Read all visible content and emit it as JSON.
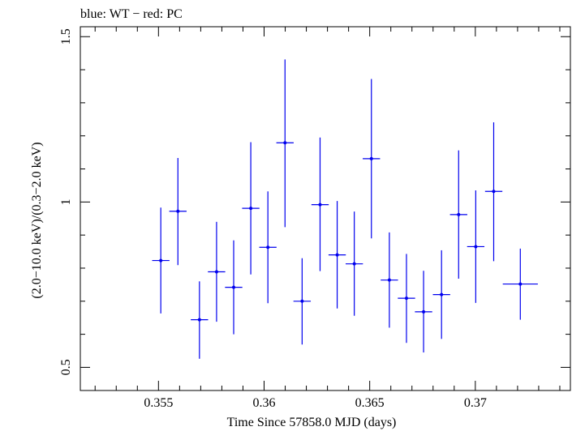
{
  "chart_data": {
    "type": "scatter",
    "title": "blue: WT − red: PC",
    "xlabel": "Time Since 57858.0 MJD (days)",
    "ylabel": "(2.0−10.0 keV)/(0.3−2.0 keV)",
    "xlim": [
      0.3513,
      0.3745
    ],
    "ylim": [
      0.43,
      1.53
    ],
    "x_ticks": [
      {
        "value": 0.355,
        "label": "0.355"
      },
      {
        "value": 0.36,
        "label": "0.36"
      },
      {
        "value": 0.365,
        "label": "0.365"
      },
      {
        "value": 0.37,
        "label": "0.37"
      }
    ],
    "y_ticks": [
      {
        "value": 0.5,
        "label": "0.5"
      },
      {
        "value": 1.0,
        "label": "1"
      },
      {
        "value": 1.5,
        "label": "1.5"
      }
    ],
    "grid": false,
    "series": [
      {
        "name": "WT",
        "color": "#0000ee",
        "points": [
          {
            "x": 0.35511,
            "xerr": 0.00041,
            "y": 0.823,
            "ylo": 0.663,
            "yhi": 0.983
          },
          {
            "x": 0.35592,
            "xerr": 0.00041,
            "y": 0.972,
            "ylo": 0.809,
            "yhi": 1.133
          },
          {
            "x": 0.35694,
            "xerr": 0.00041,
            "y": 0.644,
            "ylo": 0.526,
            "yhi": 0.76
          },
          {
            "x": 0.35775,
            "xerr": 0.00041,
            "y": 0.789,
            "ylo": 0.638,
            "yhi": 0.94
          },
          {
            "x": 0.35856,
            "xerr": 0.00041,
            "y": 0.742,
            "ylo": 0.6,
            "yhi": 0.884
          },
          {
            "x": 0.35937,
            "xerr": 0.00041,
            "y": 0.981,
            "ylo": 0.781,
            "yhi": 1.181
          },
          {
            "x": 0.36018,
            "xerr": 0.00041,
            "y": 0.863,
            "ylo": 0.694,
            "yhi": 1.032
          },
          {
            "x": 0.36099,
            "xerr": 0.00041,
            "y": 1.179,
            "ylo": 0.924,
            "yhi": 1.431
          },
          {
            "x": 0.3618,
            "xerr": 0.00041,
            "y": 0.7,
            "ylo": 0.569,
            "yhi": 0.83
          },
          {
            "x": 0.36265,
            "xerr": 0.00041,
            "y": 0.992,
            "ylo": 0.791,
            "yhi": 1.195
          },
          {
            "x": 0.36346,
            "xerr": 0.00041,
            "y": 0.84,
            "ylo": 0.678,
            "yhi": 1.003
          },
          {
            "x": 0.36427,
            "xerr": 0.00041,
            "y": 0.813,
            "ylo": 0.656,
            "yhi": 0.971
          },
          {
            "x": 0.36508,
            "xerr": 0.00041,
            "y": 1.131,
            "ylo": 0.89,
            "yhi": 1.372
          },
          {
            "x": 0.36593,
            "xerr": 0.00041,
            "y": 0.764,
            "ylo": 0.62,
            "yhi": 0.908
          },
          {
            "x": 0.36674,
            "xerr": 0.00041,
            "y": 0.709,
            "ylo": 0.574,
            "yhi": 0.843
          },
          {
            "x": 0.36755,
            "xerr": 0.00041,
            "y": 0.668,
            "ylo": 0.545,
            "yhi": 0.792
          },
          {
            "x": 0.3684,
            "xerr": 0.00041,
            "y": 0.72,
            "ylo": 0.586,
            "yhi": 0.854
          },
          {
            "x": 0.36921,
            "xerr": 0.00041,
            "y": 0.962,
            "ylo": 0.768,
            "yhi": 1.156
          },
          {
            "x": 0.37002,
            "xerr": 0.00041,
            "y": 0.865,
            "ylo": 0.695,
            "yhi": 1.035
          },
          {
            "x": 0.37087,
            "xerr": 0.00041,
            "y": 1.032,
            "ylo": 0.821,
            "yhi": 1.241
          },
          {
            "x": 0.37213,
            "xerr": 0.00083,
            "y": 0.752,
            "ylo": 0.644,
            "yhi": 0.859
          }
        ]
      }
    ]
  }
}
